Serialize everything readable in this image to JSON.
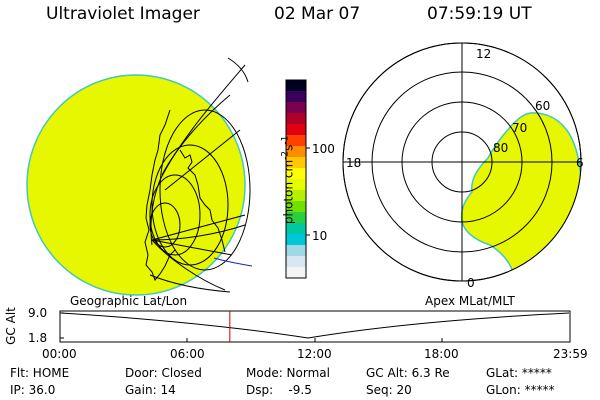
{
  "header": {
    "title": "Ultraviolet Imager",
    "date": "02 Mar 07",
    "time": "07:59:19 UT"
  },
  "colorbar": {
    "unit": "photon cm",
    "unit_exp1": "-2",
    "unit_mid": "s",
    "unit_exp2": "-1",
    "ticks": [
      "100",
      "10"
    ],
    "colors": [
      "#000020",
      "#3a005a",
      "#7a0050",
      "#b0002a",
      "#e00010",
      "#ff4000",
      "#ff8c00",
      "#ffc800",
      "#ffff00",
      "#e6ff00",
      "#b4f000",
      "#70e000",
      "#28d040",
      "#00c8a0",
      "#00c8d8",
      "#a0d8e8",
      "#d8e8f0",
      "#f4f4f4"
    ]
  },
  "polar_plot": {
    "mlt_labels": {
      "top": "12",
      "left": "18",
      "right": "6",
      "bottom": "0"
    },
    "lat_labels": [
      "60",
      "70",
      "80"
    ]
  },
  "timeline": {
    "axis_label": "GC Alt",
    "ymax": "9.0",
    "ymin": "1.8",
    "left_title": "Geographic Lat/Lon",
    "right_title": "Apex MLat/MLT",
    "x_ticks": [
      "00:00",
      "06:00",
      "12:00",
      "18:00",
      "23:59"
    ],
    "current_fraction": 0.333
  },
  "status": {
    "flt": "Flt: HOME",
    "ip": "IP: 36.0",
    "door": "Door: Closed",
    "gain": "Gain: 14",
    "mode": "Mode: Normal",
    "dsp": "Dsp:    -9.5",
    "gcalt": "GC Alt: 6.3 Re",
    "seq": "Seq: 20",
    "glat": "GLat: *****",
    "glon": "GLon: *****"
  },
  "colors": {
    "emission": "#e6f700",
    "edge": "#40c8c0",
    "marker": "#cc0000",
    "path": "#2020c0"
  }
}
